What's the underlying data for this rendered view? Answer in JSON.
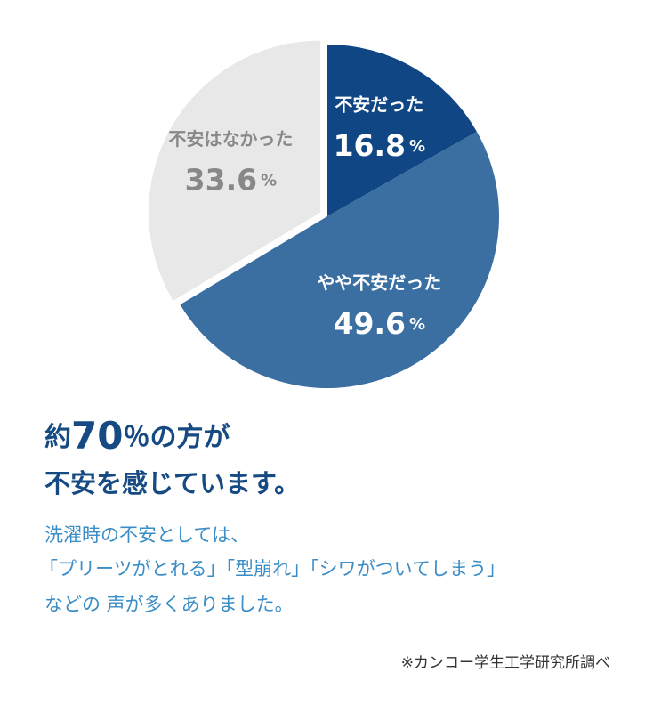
{
  "chart_data": {
    "type": "pie",
    "categories": [
      "不安だった",
      "やや不安だった",
      "不安はなかった"
    ],
    "values": [
      16.8,
      49.6,
      33.6
    ],
    "unit": "%",
    "colors": [
      "#0f4683",
      "#3b6fa2",
      "#e8e8e8"
    ],
    "exploded": [
      false,
      false,
      true
    ]
  },
  "headline": {
    "line1": {
      "pre": "約",
      "number": "70",
      "post": "％の方が"
    },
    "line2": "不安を感じています。"
  },
  "body": [
    "洗濯時の不安としては、",
    "「プリーツがとれる」「型崩れ」「シワがついてしまう」",
    "などの 声が多くありました。"
  ],
  "note": "※カンコー学生工学研究所調べ"
}
